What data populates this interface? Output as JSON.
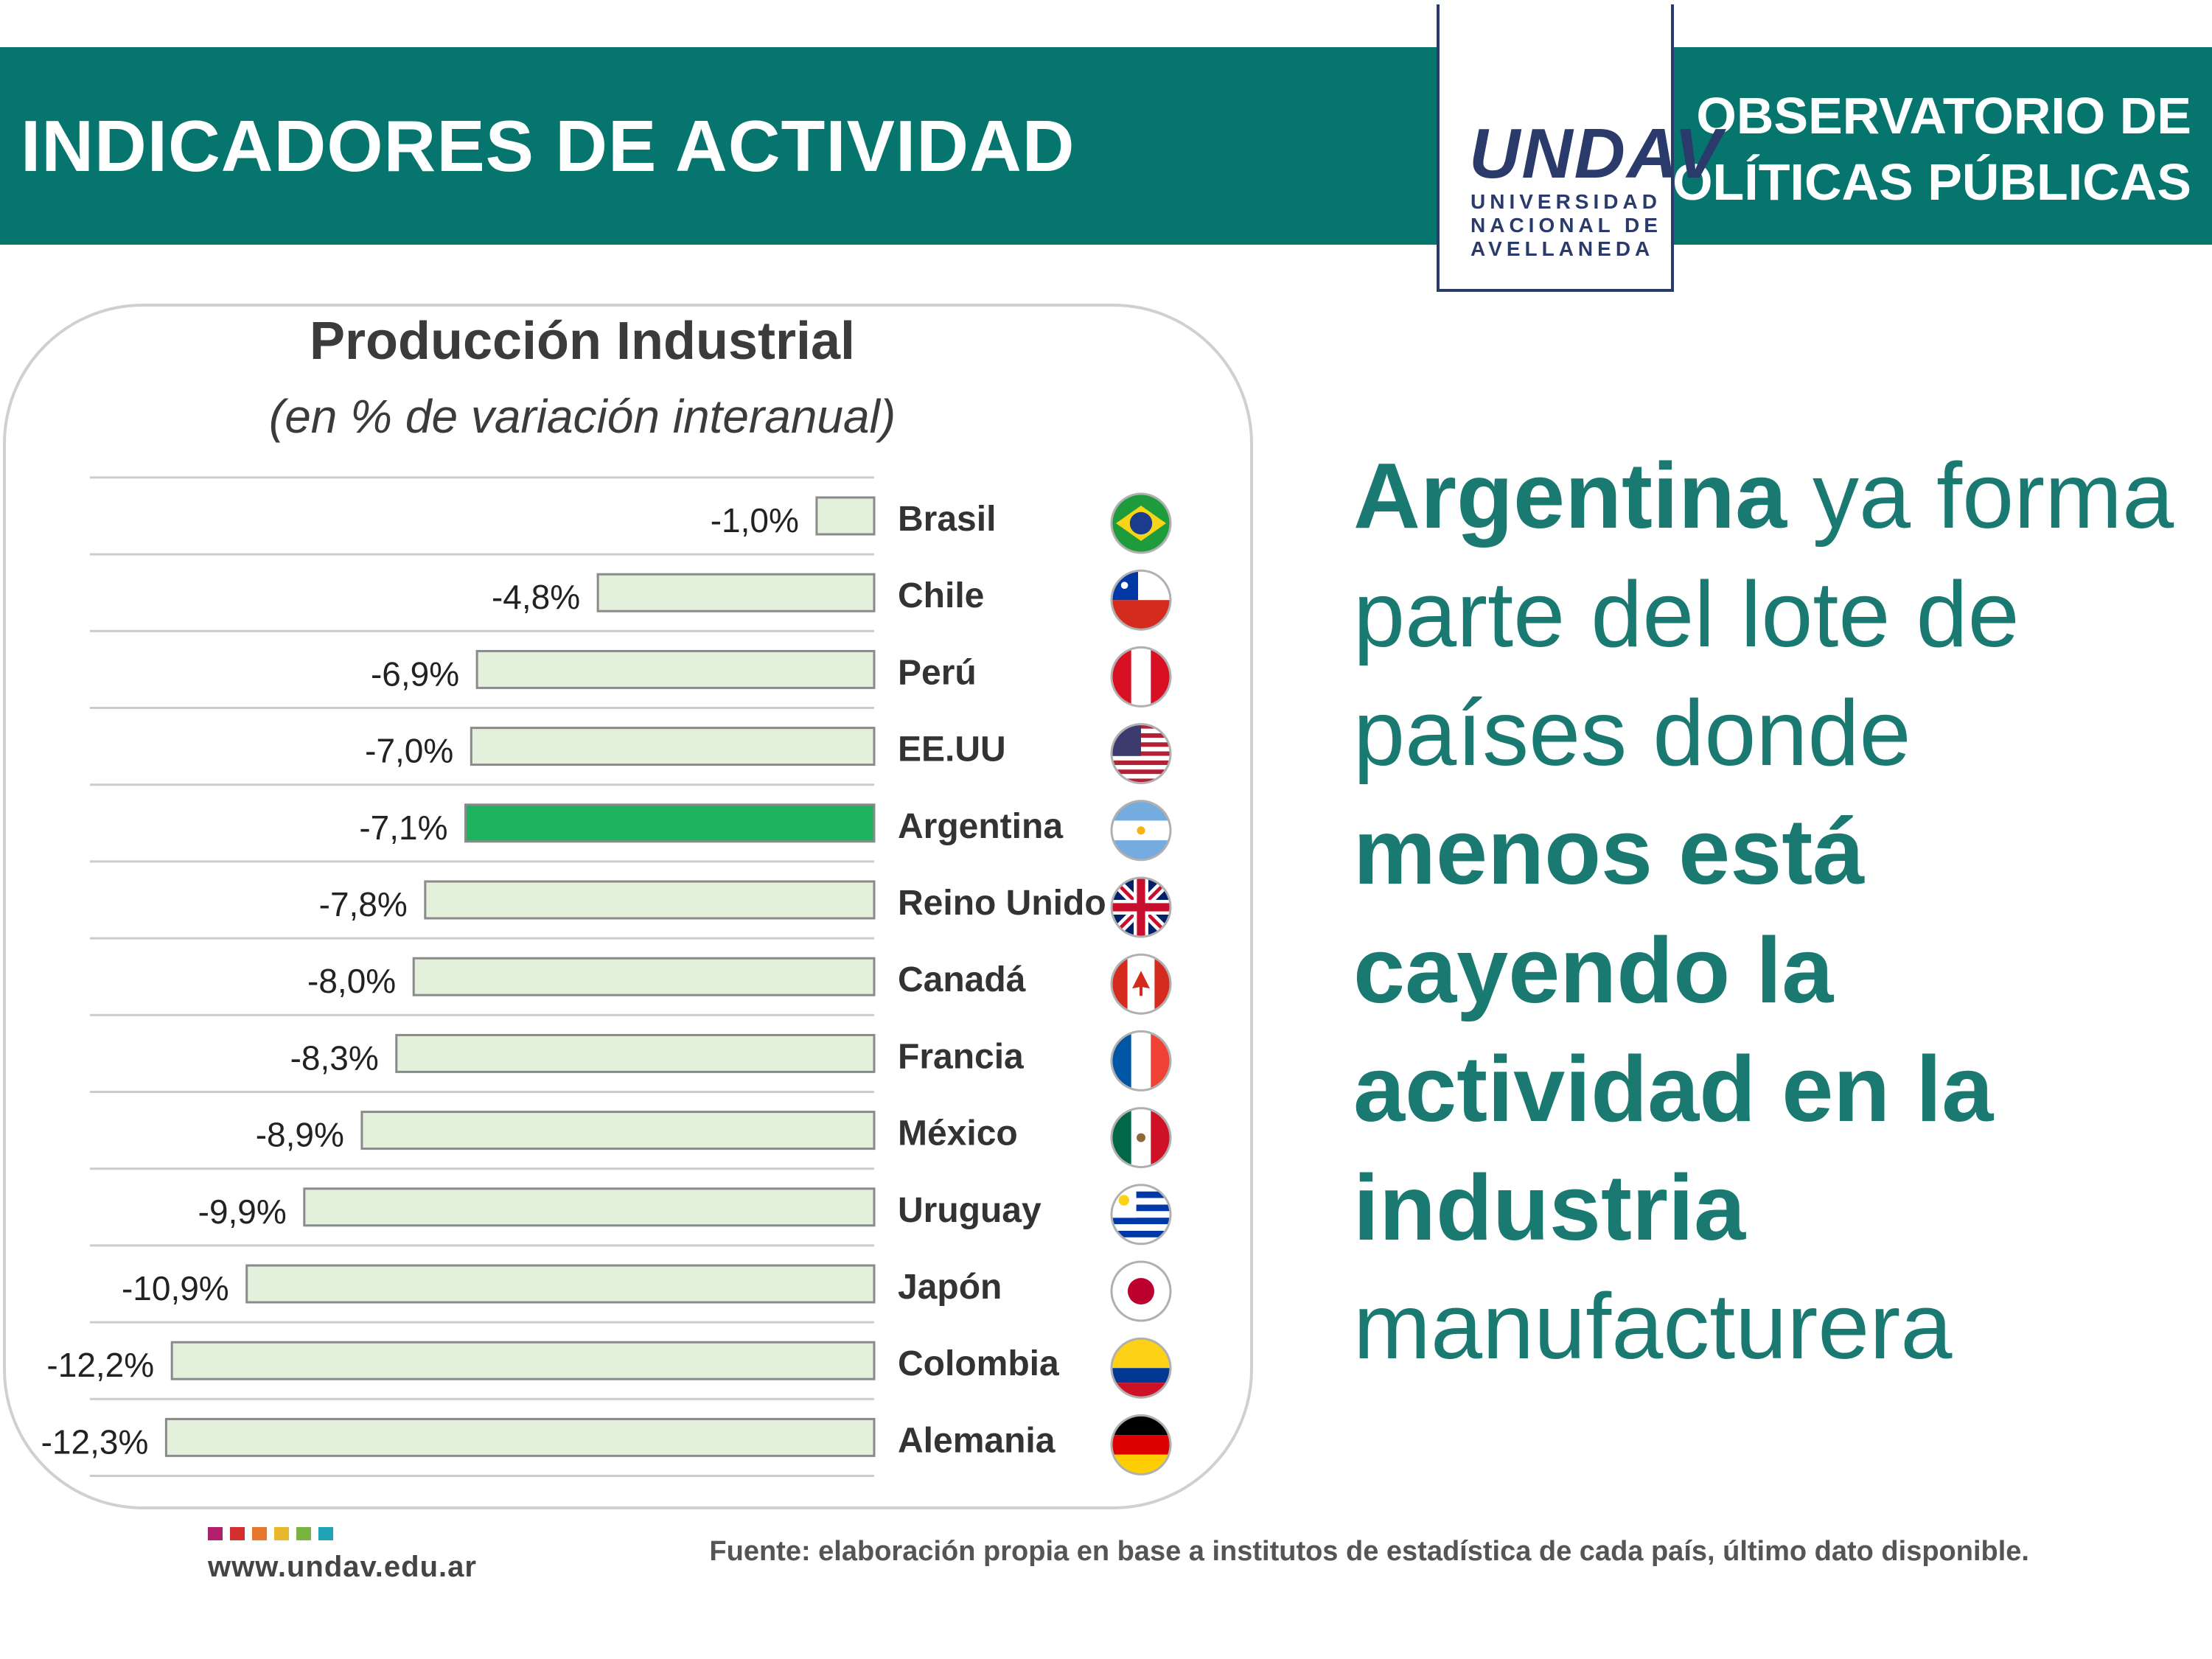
{
  "header": {
    "title": "INDICADORES DE ACTIVIDAD",
    "observatorio_line1": "OBSERVATORIO DE",
    "observatorio_line2": "POLÍTICAS PÚBLICAS",
    "logo_word": "UNDAV",
    "logo_line1": "UNIVERSIDAD",
    "logo_line2": "NACIONAL DE",
    "logo_line3": "AVELLANEDA"
  },
  "chart_data": {
    "type": "bar",
    "orientation": "horizontal",
    "title": "Producción Industrial",
    "subtitle": "(en % de variación interanual)",
    "categories": [
      "Brasil",
      "Chile",
      "Perú",
      "EE.UU",
      "Argentina",
      "Reino Unido",
      "Canadá",
      "Francia",
      "México",
      "Uruguay",
      "Japón",
      "Colombia",
      "Alemania"
    ],
    "values": [
      -1.0,
      -4.8,
      -6.9,
      -7.0,
      -7.1,
      -7.8,
      -8.0,
      -8.3,
      -8.9,
      -9.9,
      -10.9,
      -12.2,
      -12.3
    ],
    "value_labels": [
      "-1,0%",
      "-4,8%",
      "-6,9%",
      "-7,0%",
      "-7,1%",
      "-7,8%",
      "-8,0%",
      "-8,3%",
      "-8,9%",
      "-9,9%",
      "-10,9%",
      "-12,2%",
      "-12,3%"
    ],
    "highlight": "Argentina",
    "colors": {
      "bar": "#e3f0dc",
      "bar_border": "#8a8a8a",
      "highlight": "#1db35e",
      "grid": "#cccccc"
    },
    "flags": [
      "brazil-flag",
      "chile-flag",
      "peru-flag",
      "usa-flag",
      "argentina-flag",
      "uk-flag",
      "canada-flag",
      "france-flag",
      "mexico-flag",
      "uruguay-flag",
      "japan-flag",
      "colombia-flag",
      "germany-flag"
    ]
  },
  "headline": {
    "p1_bold": "Argentina",
    "p1_regular": " ya forma parte del lote de países donde ",
    "p2_bold": "menos está cayendo la actividad en la industria",
    "p3_regular": " manufacturera"
  },
  "footer": {
    "url": "www.undav.edu.ar",
    "source": "Fuente: elaboración propia en base a institutos de estadística de cada país, último dato disponible.",
    "dot_colors": [
      "#b0206c",
      "#d32f2f",
      "#e8772e",
      "#e8b72e",
      "#7bb343",
      "#22a3b8"
    ]
  }
}
